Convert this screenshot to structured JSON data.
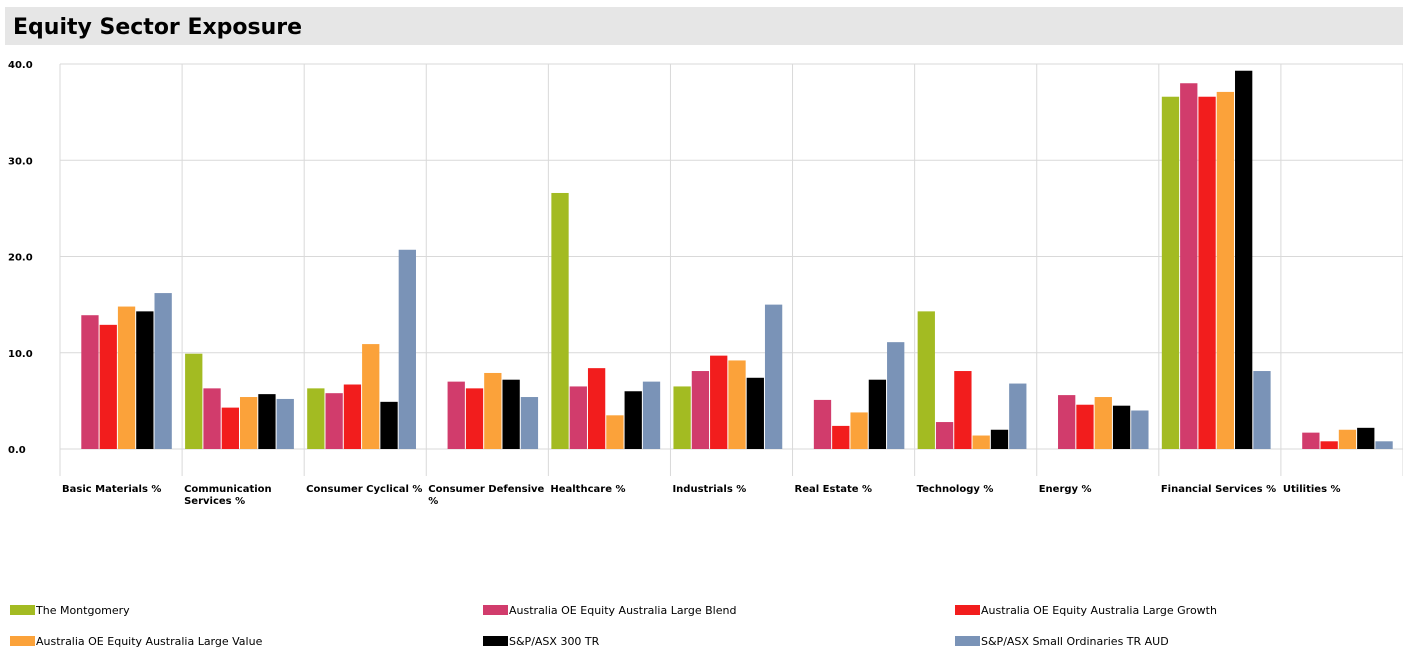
{
  "page": {
    "title": "Equity Sector Exposure"
  },
  "chart_data": {
    "type": "bar",
    "title": "Equity Sector Exposure",
    "xlabel": "",
    "ylabel": "",
    "ylim": [
      0,
      40
    ],
    "yticks": [
      "0.0",
      "10.0",
      "20.0",
      "30.0",
      "40.0"
    ],
    "grid": true,
    "legend_position": "bottom",
    "categories": [
      [
        "Basic Materials %"
      ],
      [
        "Communication",
        "Services %"
      ],
      [
        "Consumer Cyclical %"
      ],
      [
        "Consumer Defensive",
        "%"
      ],
      [
        "Healthcare %"
      ],
      [
        "Industrials %"
      ],
      [
        "Real Estate %"
      ],
      [
        "Technology %"
      ],
      [
        "Energy %"
      ],
      [
        "Financial Services %"
      ],
      [
        "Utilities %"
      ]
    ],
    "series": [
      {
        "name": "The Montgomery",
        "color": "#a3bb22",
        "values": [
          0,
          9.9,
          6.3,
          0,
          26.6,
          6.5,
          0,
          14.3,
          0,
          36.6,
          0
        ]
      },
      {
        "name": "Australia OE Equity Australia Large Blend",
        "color": "#d13c6c",
        "values": [
          13.9,
          6.3,
          5.8,
          7.0,
          6.5,
          8.1,
          5.1,
          2.8,
          5.6,
          38.0,
          1.7
        ]
      },
      {
        "name": "Australia OE Equity Australia Large Growth",
        "color": "#f21d1d",
        "values": [
          12.9,
          4.3,
          6.7,
          6.3,
          8.4,
          9.7,
          2.4,
          8.1,
          4.6,
          36.6,
          0.8
        ]
      },
      {
        "name": "Australia OE Equity Australia Large Value",
        "color": "#fba23a",
        "values": [
          14.8,
          5.4,
          10.9,
          7.9,
          3.5,
          9.2,
          3.8,
          1.4,
          5.4,
          37.1,
          2.0
        ]
      },
      {
        "name": "S&P/ASX 300 TR",
        "color": "#000000",
        "values": [
          14.3,
          5.7,
          4.9,
          7.2,
          6.0,
          7.4,
          7.2,
          2.0,
          4.5,
          39.3,
          2.2
        ]
      },
      {
        "name": "S&P/ASX Small Ordinaries TR AUD",
        "color": "#7a93b7",
        "values": [
          16.2,
          5.2,
          20.7,
          5.4,
          7.0,
          15.0,
          11.1,
          6.8,
          4.0,
          8.1,
          0.8
        ]
      }
    ]
  }
}
